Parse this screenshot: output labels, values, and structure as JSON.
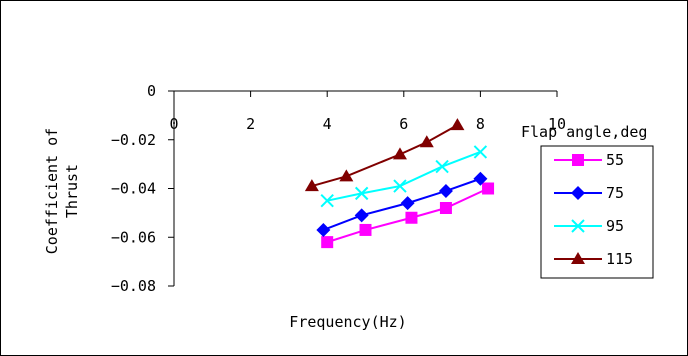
{
  "chart_data": {
    "type": "line",
    "title": "",
    "xlabel": "Frequency(Hz)",
    "ylabel": "Coefficient of Thrust",
    "ylabel_lines": [
      "Coefficient of",
      "Thrust"
    ],
    "xlim": [
      0,
      10
    ],
    "ylim": [
      -0.08,
      0
    ],
    "x_ticks": [
      0,
      2,
      4,
      6,
      8,
      10
    ],
    "x_tick_labels": [
      "0",
      "2",
      "4",
      "6",
      "8",
      "10"
    ],
    "y_ticks": [
      0,
      -0.02,
      -0.04,
      -0.06,
      -0.08
    ],
    "y_tick_labels": [
      "0",
      "−0.02",
      "−0.04",
      "−0.06",
      "−0.08"
    ],
    "x_axis_position": "top, at y = 0",
    "grid": false,
    "legend": {
      "title": "Flap angle,deg",
      "placement": "right"
    },
    "series": [
      {
        "name": "55",
        "color": "#ff00ff",
        "marker": "square",
        "x": [
          4.0,
          5.0,
          6.2,
          7.1,
          8.2
        ],
        "y": [
          -0.062,
          -0.057,
          -0.052,
          -0.048,
          -0.04
        ]
      },
      {
        "name": "75",
        "color": "#0000ff",
        "marker": "diamond",
        "x": [
          3.9,
          4.9,
          6.1,
          7.1,
          8.0
        ],
        "y": [
          -0.057,
          -0.051,
          -0.046,
          -0.041,
          -0.036
        ]
      },
      {
        "name": "95",
        "color": "#00ffff",
        "marker": "x",
        "x": [
          4.0,
          4.9,
          5.9,
          7.0,
          8.0
        ],
        "y": [
          -0.045,
          -0.042,
          -0.039,
          -0.031,
          -0.025
        ]
      },
      {
        "name": "115",
        "color": "#800000",
        "marker": "triangle",
        "x": [
          3.6,
          4.5,
          5.9,
          6.6,
          7.4
        ],
        "y": [
          -0.039,
          -0.035,
          -0.026,
          -0.021,
          -0.014
        ]
      }
    ]
  }
}
